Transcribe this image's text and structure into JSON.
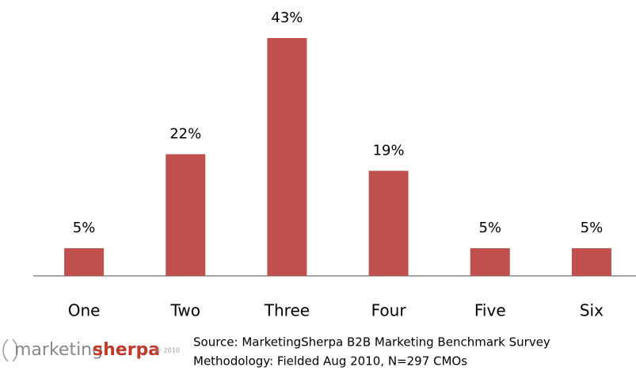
{
  "chart_data": {
    "type": "bar",
    "categories": [
      "One",
      "Two",
      "Three",
      "Four",
      "Five",
      "Six"
    ],
    "values": [
      5,
      22,
      43,
      19,
      5,
      5
    ],
    "value_labels": [
      "5%",
      "22%",
      "43%",
      "19%",
      "5%",
      "5%"
    ],
    "color": "#c0504d",
    "source": "Source: MarketingSherpa B2B Marketing Benchmark Survey",
    "methodology": "Methodology: Fielded Aug 2010, N=297 CMOs"
  },
  "logo": {
    "word1": "marketing",
    "word2": "sherpa",
    "copyright": "© 2010"
  }
}
